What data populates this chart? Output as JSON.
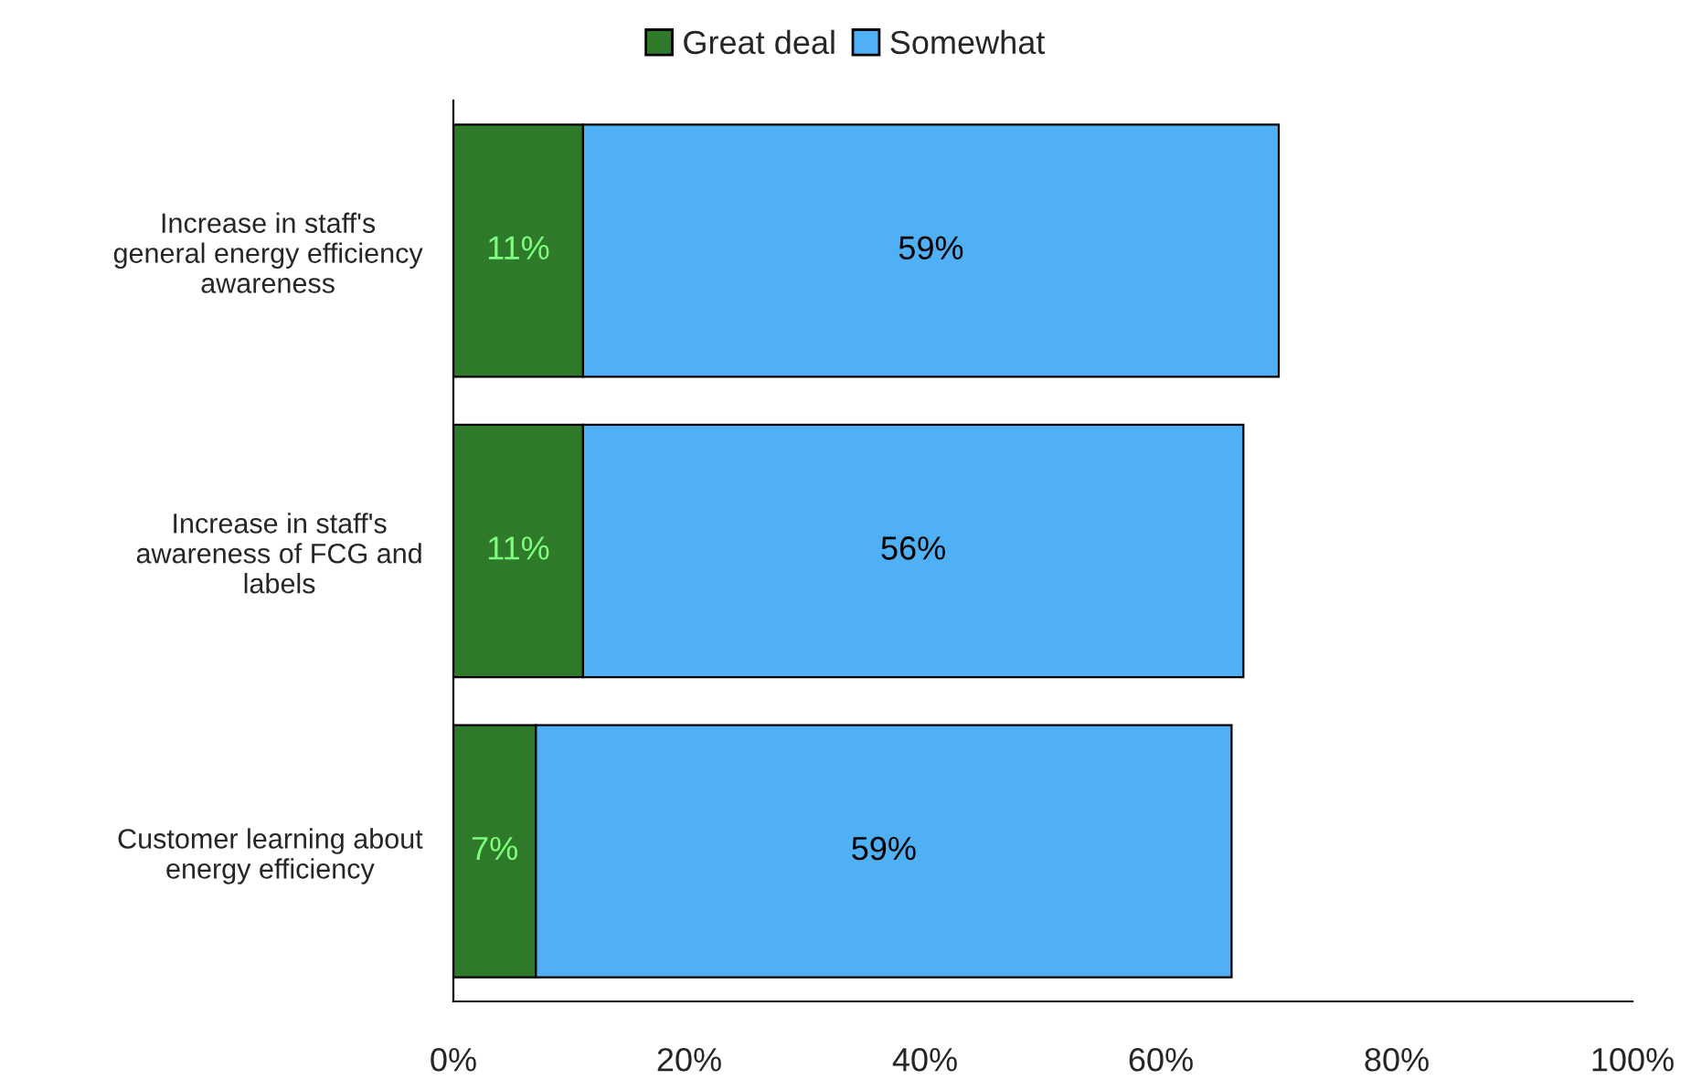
{
  "chart_data": {
    "type": "bar",
    "orientation": "horizontal",
    "stacked": true,
    "categories": [
      "Increase in staff's general energy efficiency awareness",
      "Increase in staff's awareness of FCG and labels",
      "Customer learning about energy efficiency"
    ],
    "series": [
      {
        "name": "Great deal",
        "color": "#2e7a2a",
        "values": [
          11,
          11,
          7
        ],
        "value_labels": [
          "11%",
          "11%",
          "7%"
        ]
      },
      {
        "name": "Somewhat",
        "color": "#4fb0f5",
        "values": [
          59,
          56,
          59
        ],
        "value_labels": [
          "59%",
          "56%",
          "59%"
        ]
      }
    ],
    "xlim": [
      0,
      100
    ],
    "xticks": [
      {
        "value": 0,
        "label": "0%"
      },
      {
        "value": 20,
        "label": "20%"
      },
      {
        "value": 40,
        "label": "40%"
      },
      {
        "value": 60,
        "label": "60%"
      },
      {
        "value": 80,
        "label": "80%"
      },
      {
        "value": 100,
        "label": "100%"
      }
    ],
    "grid": false,
    "legend": "top"
  }
}
